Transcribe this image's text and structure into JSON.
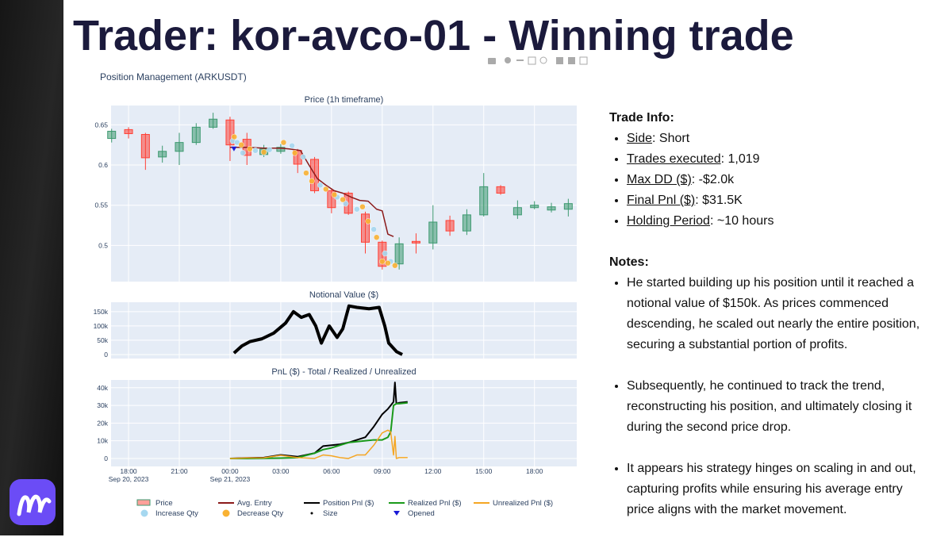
{
  "slide": {
    "title": "Trader: kor-avco-01 - Winning trade",
    "plot_title": "Position Management (ARKUSDT)",
    "trade_info": {
      "heading": "Trade Info:",
      "items": [
        {
          "label": "Side",
          "value": ": Short"
        },
        {
          "label": "Trades executed",
          "value": ": 1,019"
        },
        {
          "label": "Max DD ($)",
          "value": ": -$2.0k"
        },
        {
          "label": "Final Pnl ($)",
          "value": ": $31.5K"
        },
        {
          "label": "Holding Period",
          "value": ": ~10 hours"
        }
      ]
    },
    "notes": {
      "heading": "Notes:",
      "items": [
        "He started building up his position until it reached a notional value of $150k. As prices commenced descending, he scaled out nearly the entire position, securing a substantial portion of profits.",
        "Subsequently, he continued to track the trend, reconstructing his position, and ultimately closing it during the second price drop.",
        "It appears his strategy hinges on scaling in and out, capturing profits while ensuring his average entry price aligns with the market movement."
      ]
    }
  },
  "chart_data": [
    {
      "type": "candlestick",
      "title": "Price (1h timeframe)",
      "name": "Price",
      "increasing_color": "#3d9970",
      "decreasing_color": "#ff4136",
      "size_legend": "Size",
      "xlim": [
        "2023-09-20 16:58",
        "2023-09-21 20:30"
      ],
      "ylim": [
        0.455,
        0.674
      ],
      "yticks": [
        0.5,
        0.55,
        0.6,
        0.65
      ],
      "grid": true,
      "x": [
        "2023-09-20 17:00",
        "2023-09-20 18:00",
        "2023-09-20 19:00",
        "2023-09-20 20:00",
        "2023-09-20 21:00",
        "2023-09-20 22:00",
        "2023-09-20 23:00",
        "2023-09-21 00:00",
        "2023-09-21 01:00",
        "2023-09-21 02:00",
        "2023-09-21 03:00",
        "2023-09-21 04:00",
        "2023-09-21 05:00",
        "2023-09-21 06:00",
        "2023-09-21 07:00",
        "2023-09-21 08:00",
        "2023-09-21 09:00",
        "2023-09-21 10:00",
        "2023-09-21 11:00",
        "2023-09-21 12:00",
        "2023-09-21 13:00",
        "2023-09-21 14:00",
        "2023-09-21 15:00",
        "2023-09-21 16:00",
        "2023-09-21 17:00",
        "2023-09-21 18:00",
        "2023-09-21 19:00",
        "2023-09-21 20:00"
      ],
      "open": [
        0.633,
        0.644,
        0.638,
        0.61,
        0.617,
        0.628,
        0.647,
        0.656,
        0.632,
        0.613,
        0.617,
        0.618,
        0.607,
        0.568,
        0.565,
        0.539,
        0.504,
        0.477,
        0.505,
        0.503,
        0.531,
        0.518,
        0.538,
        0.573,
        0.538,
        0.547,
        0.544,
        0.545
      ],
      "high": [
        0.645,
        0.647,
        0.64,
        0.624,
        0.64,
        0.652,
        0.665,
        0.66,
        0.64,
        0.625,
        0.626,
        0.62,
        0.61,
        0.571,
        0.567,
        0.542,
        0.506,
        0.51,
        0.515,
        0.55,
        0.537,
        0.545,
        0.59,
        0.575,
        0.556,
        0.555,
        0.553,
        0.558
      ],
      "low": [
        0.628,
        0.633,
        0.594,
        0.603,
        0.6,
        0.625,
        0.645,
        0.605,
        0.6,
        0.61,
        0.614,
        0.59,
        0.565,
        0.54,
        0.538,
        0.49,
        0.47,
        0.47,
        0.49,
        0.495,
        0.512,
        0.513,
        0.536,
        0.563,
        0.533,
        0.545,
        0.541,
        0.536
      ],
      "close": [
        0.642,
        0.639,
        0.609,
        0.617,
        0.628,
        0.647,
        0.657,
        0.625,
        0.612,
        0.62,
        0.622,
        0.601,
        0.568,
        0.547,
        0.54,
        0.504,
        0.474,
        0.502,
        0.503,
        0.529,
        0.518,
        0.538,
        0.573,
        0.565,
        0.547,
        0.55,
        0.548,
        0.552
      ],
      "series": [
        {
          "name": "Avg. Entry",
          "type": "line",
          "color": "#8b1a1a",
          "x": [
            "2023-09-21 00:00",
            "2023-09-21 01:00",
            "2023-09-21 02:00",
            "2023-09-21 03:00",
            "2023-09-21 03:30",
            "2023-09-21 04:10",
            "2023-09-21 04:40",
            "2023-09-21 05:10",
            "2023-09-21 05:40",
            "2023-09-21 06:10",
            "2023-09-21 06:40",
            "2023-09-21 07:10",
            "2023-09-21 07:40",
            "2023-09-21 08:10",
            "2023-09-21 08:40",
            "2023-09-21 09:00",
            "2023-09-21 09:20",
            "2023-09-21 09:40"
          ],
          "values": [
            0.622,
            0.622,
            0.621,
            0.621,
            0.62,
            0.618,
            0.6,
            0.583,
            0.575,
            0.568,
            0.565,
            0.56,
            0.556,
            0.555,
            0.545,
            0.543,
            0.514,
            0.511
          ]
        },
        {
          "name": "Increase Qty",
          "type": "scatter",
          "color": "#a6d8f0",
          "x": [
            "2023-09-21 00:10",
            "2023-09-21 00:25",
            "2023-09-21 00:45",
            "2023-09-21 01:30",
            "2023-09-21 02:20",
            "2023-09-21 03:40",
            "2023-09-21 04:20",
            "2023-09-21 05:20",
            "2023-09-21 06:20",
            "2023-09-21 06:50",
            "2023-09-21 07:30",
            "2023-09-21 08:30",
            "2023-09-21 09:10",
            "2023-09-21 09:30"
          ],
          "values": [
            0.63,
            0.628,
            0.615,
            0.618,
            0.619,
            0.624,
            0.61,
            0.575,
            0.56,
            0.552,
            0.545,
            0.52,
            0.49,
            0.48
          ]
        },
        {
          "name": "Decrease Qty",
          "type": "scatter",
          "color": "#f9b233",
          "x": [
            "2023-09-21 00:15",
            "2023-09-21 00:40",
            "2023-09-21 01:10",
            "2023-09-21 02:00",
            "2023-09-21 03:10",
            "2023-09-21 03:50",
            "2023-09-21 04:30",
            "2023-09-21 04:50",
            "2023-09-21 05:40",
            "2023-09-21 06:10",
            "2023-09-21 06:40",
            "2023-09-21 07:50",
            "2023-09-21 08:10",
            "2023-09-21 08:40",
            "2023-09-21 09:00",
            "2023-09-21 09:20",
            "2023-09-21 09:45"
          ],
          "values": [
            0.635,
            0.625,
            0.62,
            0.616,
            0.628,
            0.615,
            0.59,
            0.58,
            0.57,
            0.563,
            0.557,
            0.548,
            0.53,
            0.51,
            0.48,
            0.478,
            0.475
          ]
        },
        {
          "name": "Opened",
          "type": "triangle",
          "color": "#1a1ad6",
          "x": [
            "2023-09-21 00:14"
          ],
          "values": [
            0.62
          ]
        }
      ]
    },
    {
      "type": "line",
      "title": "Notional Value ($)",
      "xlim": [
        "2023-09-20 16:58",
        "2023-09-21 20:30"
      ],
      "ylim": [
        -14000,
        183000
      ],
      "yticks": [
        0,
        {
          "value": 50000,
          "label": "50k"
        },
        {
          "value": 100000,
          "label": "100k"
        },
        {
          "value": 150000,
          "label": "150k"
        }
      ],
      "grid": true,
      "series": [
        {
          "type": "line",
          "color": "#000000",
          "width": 4,
          "x": [
            "2023-09-21 00:14",
            "2023-09-21 00:42",
            "2023-09-21 01:10",
            "2023-09-21 01:53",
            "2023-09-21 02:35",
            "2023-09-21 03:17",
            "2023-09-21 03:45",
            "2023-09-21 04:13",
            "2023-09-21 04:41",
            "2023-09-21 05:04",
            "2023-09-21 05:24",
            "2023-09-21 05:52",
            "2023-09-21 06:20",
            "2023-09-21 06:40",
            "2023-09-21 07:02",
            "2023-09-21 07:30",
            "2023-09-21 08:13",
            "2023-09-21 08:49",
            "2023-09-21 09:09",
            "2023-09-21 09:23",
            "2023-09-21 09:51",
            "2023-09-21 10:11"
          ],
          "values": [
            5000,
            30000,
            45000,
            55000,
            75000,
            110000,
            150000,
            130000,
            140000,
            100000,
            40000,
            100000,
            60000,
            90000,
            170000,
            165000,
            160000,
            165000,
            100000,
            40000,
            10000,
            0
          ]
        }
      ]
    },
    {
      "type": "line",
      "title": "PnL ($) - Total / Realized / Unrealized",
      "xlim": [
        "2023-09-20 16:58",
        "2023-09-21 20:30"
      ],
      "ylim": [
        -4500,
        44400
      ],
      "yticks": [
        0,
        {
          "value": 10000,
          "label": "10k"
        },
        {
          "value": 20000,
          "label": "20k"
        },
        {
          "value": 30000,
          "label": "30k"
        },
        {
          "value": 40000,
          "label": "40k"
        }
      ],
      "grid": true,
      "xticks": [
        {
          "value": "2023-09-20 18:00",
          "label": "18:00",
          "date": "Sep 20, 2023"
        },
        {
          "value": "2023-09-20 21:00",
          "label": "21:00"
        },
        {
          "value": "2023-09-21 00:00",
          "label": "00:00",
          "date": "Sep 21, 2023"
        },
        {
          "value": "2023-09-21 03:00",
          "label": "03:00"
        },
        {
          "value": "2023-09-21 06:00",
          "label": "06:00"
        },
        {
          "value": "2023-09-21 09:00",
          "label": "09:00"
        },
        {
          "value": "2023-09-21 12:00",
          "label": "12:00"
        },
        {
          "value": "2023-09-21 15:00",
          "label": "15:00"
        },
        {
          "value": "2023-09-21 18:00",
          "label": "18:00"
        }
      ],
      "x": [
        "2023-09-21 00:00",
        "2023-09-21 01:00",
        "2023-09-21 02:00",
        "2023-09-21 03:00",
        "2023-09-21 04:00",
        "2023-09-21 05:00",
        "2023-09-21 05:30",
        "2023-09-21 06:00",
        "2023-09-21 06:30",
        "2023-09-21 07:00",
        "2023-09-21 07:30",
        "2023-09-21 08:00",
        "2023-09-21 08:30",
        "2023-09-21 09:00",
        "2023-09-21 09:20",
        "2023-09-21 09:30",
        "2023-09-21 09:40",
        "2023-09-21 09:45",
        "2023-09-21 09:50",
        "2023-09-21 10:00",
        "2023-09-21 10:30"
      ],
      "series": [
        {
          "name": "Position Pnl ($)",
          "type": "line",
          "color": "#000000",
          "width": 2,
          "values": [
            0,
            300,
            500,
            2000,
            1000,
            3000,
            7000,
            7500,
            8000,
            9000,
            10500,
            12000,
            18000,
            25000,
            28000,
            30000,
            32000,
            43000,
            31000,
            31500,
            32000
          ]
        },
        {
          "name": "Realized Pnl ($)",
          "type": "line",
          "color": "#1a9a1a",
          "width": 2,
          "values": [
            0,
            0,
            100,
            200,
            500,
            3000,
            5000,
            6000,
            7500,
            9000,
            9500,
            10000,
            10500,
            10500,
            12000,
            15000,
            30000,
            30500,
            31000,
            31000,
            31500
          ]
        },
        {
          "name": "Unrealized Pnl ($)",
          "type": "line",
          "color": "#f5a623",
          "width": 1.5,
          "values": [
            0,
            300,
            400,
            1800,
            500,
            0,
            2000,
            1500,
            500,
            0,
            2000,
            2000,
            7500,
            14500,
            16000,
            15000,
            2000,
            12500,
            0,
            500,
            500
          ]
        }
      ]
    }
  ]
}
